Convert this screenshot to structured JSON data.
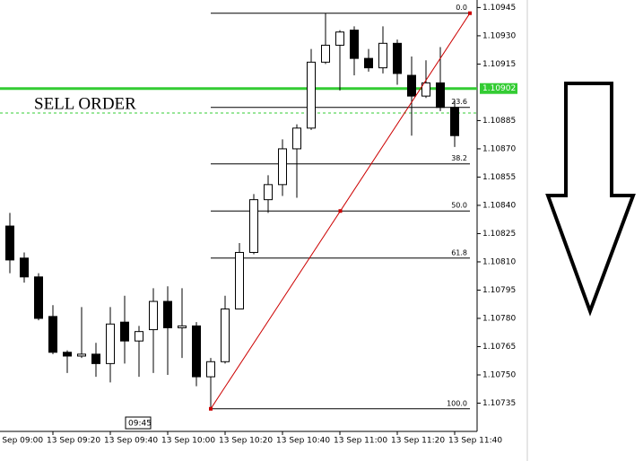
{
  "chart_data": {
    "type": "candlestick",
    "annotation": "SELL ORDER",
    "crosshair_label": "09:45",
    "crosshair_index": 9,
    "categories": [
      "13 Sep 09:00",
      null,
      null,
      null,
      "13 Sep 09:20",
      null,
      null,
      null,
      "13 Sep 09:40",
      null,
      null,
      null,
      "13 Sep 10:00",
      null,
      null,
      null,
      "13 Sep 10:20",
      null,
      null,
      null,
      "13 Sep 10:40",
      null,
      null,
      null,
      "13 Sep 11:00",
      null,
      null,
      null,
      "13 Sep 11:20",
      null,
      null,
      null,
      "13 Sep 11:40"
    ],
    "open": [
      null,
      1.10829,
      1.10812,
      1.10802,
      1.10781,
      1.10762,
      1.1076,
      1.10761,
      1.10756,
      1.10778,
      1.10768,
      1.10774,
      1.10789,
      1.10775,
      1.10776,
      1.10749,
      1.10757,
      1.10785,
      1.10815,
      1.10843,
      1.10851,
      1.1087,
      1.10881,
      1.10916,
      1.10925,
      1.10933,
      1.10918,
      1.10913,
      1.10926,
      1.10909,
      1.10898,
      1.10905,
      1.10892
    ],
    "high": [
      null,
      1.10836,
      1.10815,
      1.10804,
      1.10787,
      1.10763,
      1.10786,
      1.10767,
      1.10786,
      1.10792,
      1.10776,
      1.10796,
      1.10797,
      1.10796,
      1.10778,
      1.10759,
      1.10792,
      1.1082,
      1.10846,
      1.10856,
      1.10875,
      1.10883,
      1.10923,
      1.10942,
      1.10933,
      1.10935,
      1.10923,
      1.10935,
      1.10928,
      1.10919,
      1.10917,
      1.10924,
      1.10896
    ],
    "low": [
      null,
      1.10804,
      1.10799,
      1.10779,
      1.10761,
      1.10751,
      1.10759,
      1.10749,
      1.10746,
      1.10756,
      1.10749,
      1.10751,
      1.1075,
      1.10759,
      1.10744,
      1.10732,
      1.10756,
      1.10785,
      1.10814,
      1.10836,
      1.10845,
      1.10844,
      1.1088,
      1.10915,
      1.10901,
      1.10909,
      1.10911,
      1.1091,
      1.10904,
      1.10877,
      1.10897,
      1.1089,
      1.10871
    ],
    "close": [
      null,
      1.10811,
      1.10802,
      1.1078,
      1.10762,
      1.1076,
      1.10761,
      1.10756,
      1.10777,
      1.10768,
      1.10773,
      1.10789,
      1.10775,
      1.10776,
      1.10749,
      1.10757,
      1.10785,
      1.10815,
      1.10843,
      1.10851,
      1.1087,
      1.10881,
      1.10916,
      1.10925,
      1.10932,
      1.10918,
      1.10913,
      1.10926,
      1.1091,
      1.10898,
      1.10905,
      1.10892,
      1.10877
    ],
    "up_color": "#ffffff",
    "down_color": "#000000",
    "ylim": [
      1.10949,
      1.1072
    ],
    "yticks": [
      1.10945,
      {
        "value": 1.1093,
        "label": "1.10930"
      },
      1.10915,
      1.10885,
      {
        "value": 1.1087,
        "label": "1.10870"
      },
      1.10855,
      {
        "value": 1.1084,
        "label": "1.10840"
      },
      1.10825,
      {
        "value": 1.1081,
        "label": "1.10810"
      },
      1.10795,
      {
        "value": 1.1078,
        "label": "1.10780"
      },
      1.10765,
      {
        "value": 1.1075,
        "label": "1.10750"
      },
      1.10735
    ],
    "price_line": 1.10902,
    "price_line_color": "#33cc33",
    "dashed_line": 1.10889,
    "fib_levels": [
      {
        "label": "0.0",
        "value": 1.10942
      },
      {
        "label": "23.6",
        "value": 1.10892
      },
      {
        "label": "38.2",
        "value": 1.10862
      },
      {
        "label": "50.0",
        "value": 1.10837
      },
      {
        "label": "61.8",
        "value": 1.10812
      },
      {
        "label": "100.0",
        "value": 1.10732
      }
    ],
    "trend_color": "#cc0000"
  }
}
